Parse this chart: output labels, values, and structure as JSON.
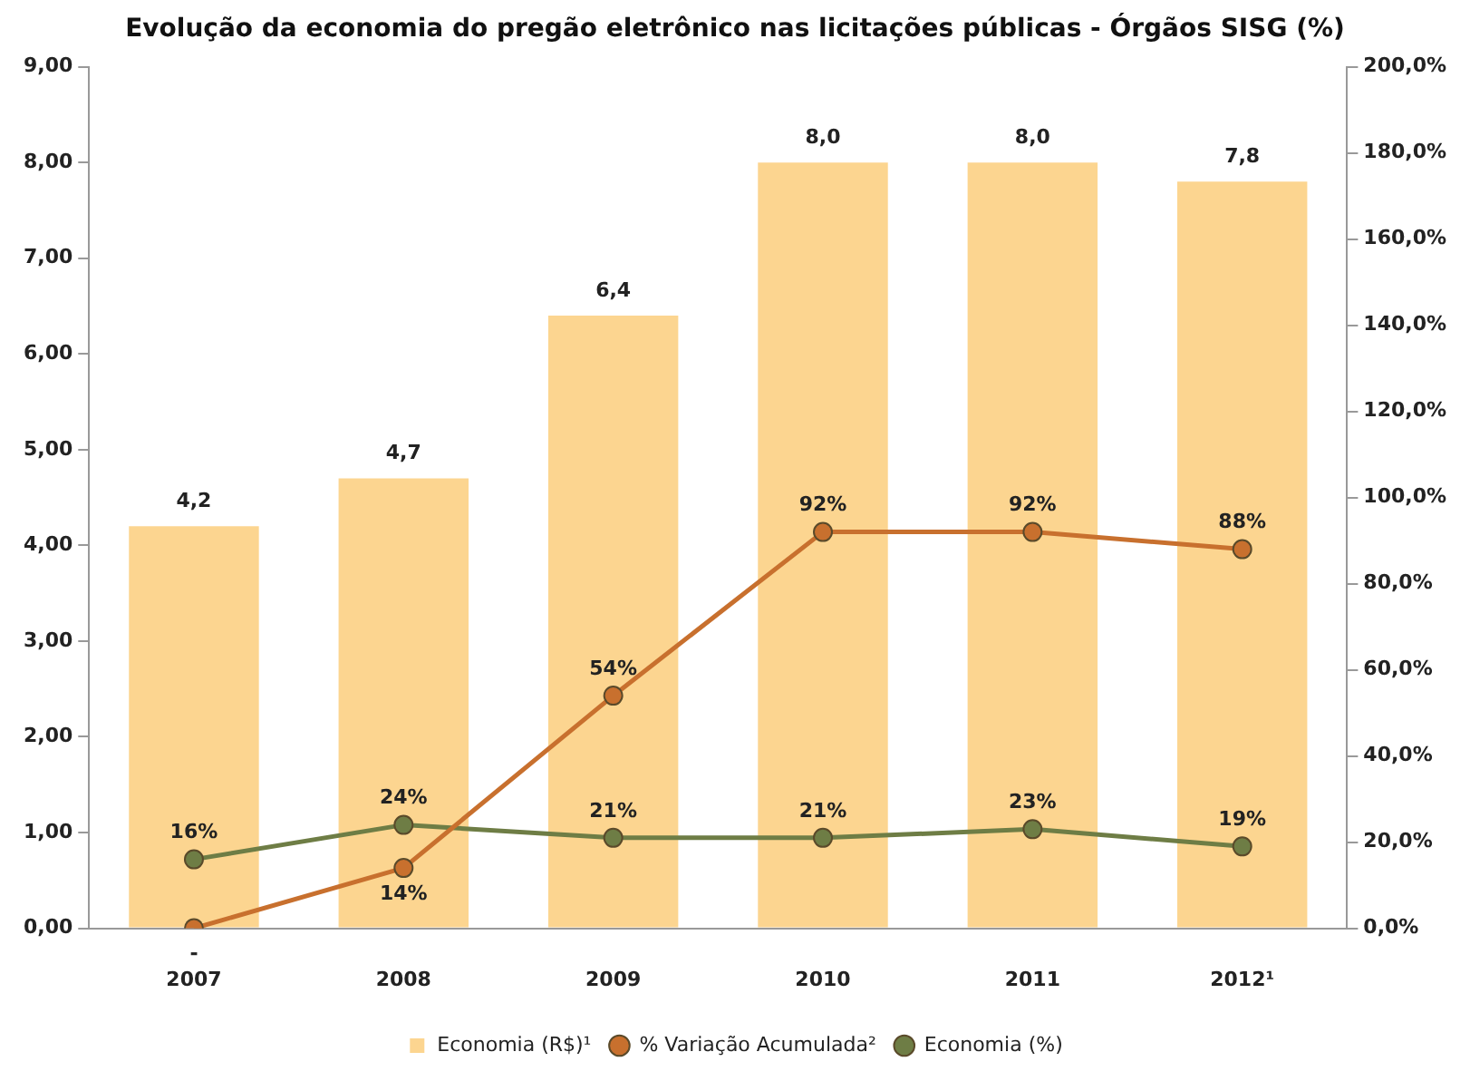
{
  "chart_data": {
    "type": "bar",
    "title": "Evolução da economia do pregão eletrônico nas licitações públicas - Órgãos SISG (%)",
    "categories": [
      "2007",
      "2008",
      "2009",
      "2010",
      "2011",
      "2012¹"
    ],
    "series": [
      {
        "name": "Economia (R$)¹",
        "color": "#fcd590",
        "values": [
          4.2,
          4.7,
          6.4,
          8.0,
          8.0,
          7.8
        ],
        "value_labels": [
          "4,2",
          "4,7",
          "6,4",
          "8,0",
          "8,0",
          "7,8"
        ]
      },
      {
        "name": "% Variação Acumulada²",
        "type": "line",
        "axis": "y2",
        "color": "#c8702e",
        "values": [
          0,
          14,
          54,
          92,
          92,
          88
        ],
        "value_labels": [
          "-",
          "14%",
          "54%",
          "92%",
          "92%",
          "88%"
        ]
      },
      {
        "name": "Economia (%)",
        "type": "line",
        "axis": "y2",
        "color": "#6e7d45",
        "values": [
          16,
          24,
          21,
          21,
          23,
          19
        ],
        "value_labels": [
          "16%",
          "24%",
          "21%",
          "21%",
          "23%",
          "19%"
        ]
      }
    ],
    "ylim": [
      0,
      9
    ],
    "yticks": [
      {
        "value": 0,
        "label": "0,00"
      },
      {
        "value": 1,
        "label": "1,00"
      },
      {
        "value": 2,
        "label": "2,00"
      },
      {
        "value": 3,
        "label": "3,00"
      },
      {
        "value": 4,
        "label": "4,00"
      },
      {
        "value": 5,
        "label": "5,00"
      },
      {
        "value": 6,
        "label": "6,00"
      },
      {
        "value": 7,
        "label": "7,00"
      },
      {
        "value": 8,
        "label": "8,00"
      },
      {
        "value": 9,
        "label": "9,00"
      }
    ],
    "y2lim": [
      0,
      200
    ],
    "y2ticks": [
      {
        "value": 0,
        "label": "0,0%"
      },
      {
        "value": 20,
        "label": "20,0%"
      },
      {
        "value": 40,
        "label": "40,0%"
      },
      {
        "value": 60,
        "label": "60,0%"
      },
      {
        "value": 80,
        "label": "80,0%"
      },
      {
        "value": 100,
        "label": "100,0%"
      },
      {
        "value": 120,
        "label": "120,0%"
      },
      {
        "value": 140,
        "label": "140,0%"
      },
      {
        "value": 160,
        "label": "160,0%"
      },
      {
        "value": 180,
        "label": "180,0%"
      },
      {
        "value": 200,
        "label": "200,0%"
      }
    ],
    "grid": false,
    "legend": "bottom",
    "marker": "circle",
    "line_style": "solid"
  }
}
